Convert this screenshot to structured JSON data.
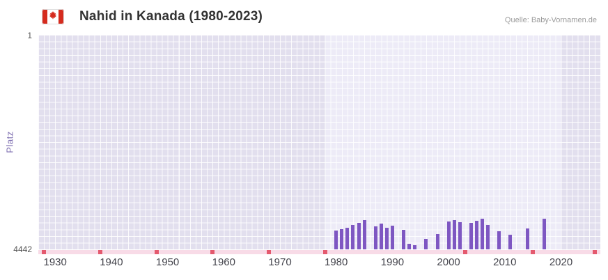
{
  "header": {
    "title": "Nahid in Kanada (1980-2023)",
    "source": "Quelle: Baby-Vornamen.de",
    "flag_icon": "canada-flag-icon"
  },
  "axes": {
    "y_axis_title": "Platz",
    "y_top_label": "1",
    "y_bottom_label": "4442"
  },
  "colors": {
    "bar": "#7e57c2",
    "band_dark": "#e2dfee",
    "band_light": "#edebf7",
    "grid_line": "rgba(255,255,255,0.85)",
    "baseline_light": "#f8dbe7",
    "marker_red": "#e4596e",
    "flag_red": "#d52b1e",
    "axis_title_text": "#7a6aae",
    "tick_label_text": "#45454d",
    "title_text": "#333333",
    "source_text": "#9b9b9b"
  },
  "chart_data": {
    "type": "bar",
    "title": "Nahid in Kanada (1980-2023)",
    "xlabel": "",
    "ylabel": "Platz",
    "xlim": [
      1927,
      2027
    ],
    "ylim": [
      1,
      4442
    ],
    "y_axis_inverted": true,
    "xticks": [
      1930,
      1940,
      1950,
      1960,
      1970,
      1980,
      1990,
      2000,
      2010,
      2020
    ],
    "yticks": [
      1,
      4442
    ],
    "grid": true,
    "legend": "none",
    "highlight_band": [
      1978,
      2020
    ],
    "series": [
      {
        "name": "Platz",
        "color": "#7e57c2",
        "points": [
          {
            "year": 1980,
            "rank": 4050
          },
          {
            "year": 1981,
            "rank": 4020
          },
          {
            "year": 1982,
            "rank": 3990
          },
          {
            "year": 1983,
            "rank": 3940
          },
          {
            "year": 1984,
            "rank": 3890
          },
          {
            "year": 1985,
            "rank": 3830
          },
          {
            "year": 1987,
            "rank": 3960
          },
          {
            "year": 1988,
            "rank": 3910
          },
          {
            "year": 1989,
            "rank": 3990
          },
          {
            "year": 1990,
            "rank": 3950
          },
          {
            "year": 1992,
            "rank": 4040
          },
          {
            "year": 1993,
            "rank": 4320
          },
          {
            "year": 1994,
            "rank": 4350
          },
          {
            "year": 1996,
            "rank": 4230
          },
          {
            "year": 1998,
            "rank": 4130
          },
          {
            "year": 2000,
            "rank": 3860
          },
          {
            "year": 2001,
            "rank": 3840
          },
          {
            "year": 2002,
            "rank": 3880
          },
          {
            "year": 2004,
            "rank": 3900
          },
          {
            "year": 2005,
            "rank": 3850
          },
          {
            "year": 2006,
            "rank": 3800
          },
          {
            "year": 2007,
            "rank": 3940
          },
          {
            "year": 2009,
            "rank": 4060
          },
          {
            "year": 2011,
            "rank": 4140
          },
          {
            "year": 2014,
            "rank": 4010
          },
          {
            "year": 2017,
            "rank": 3810
          }
        ]
      }
    ],
    "unranked_marker_years": [
      1928,
      1938,
      1948,
      1958,
      1968,
      1978,
      2003,
      2015,
      2026
    ]
  }
}
